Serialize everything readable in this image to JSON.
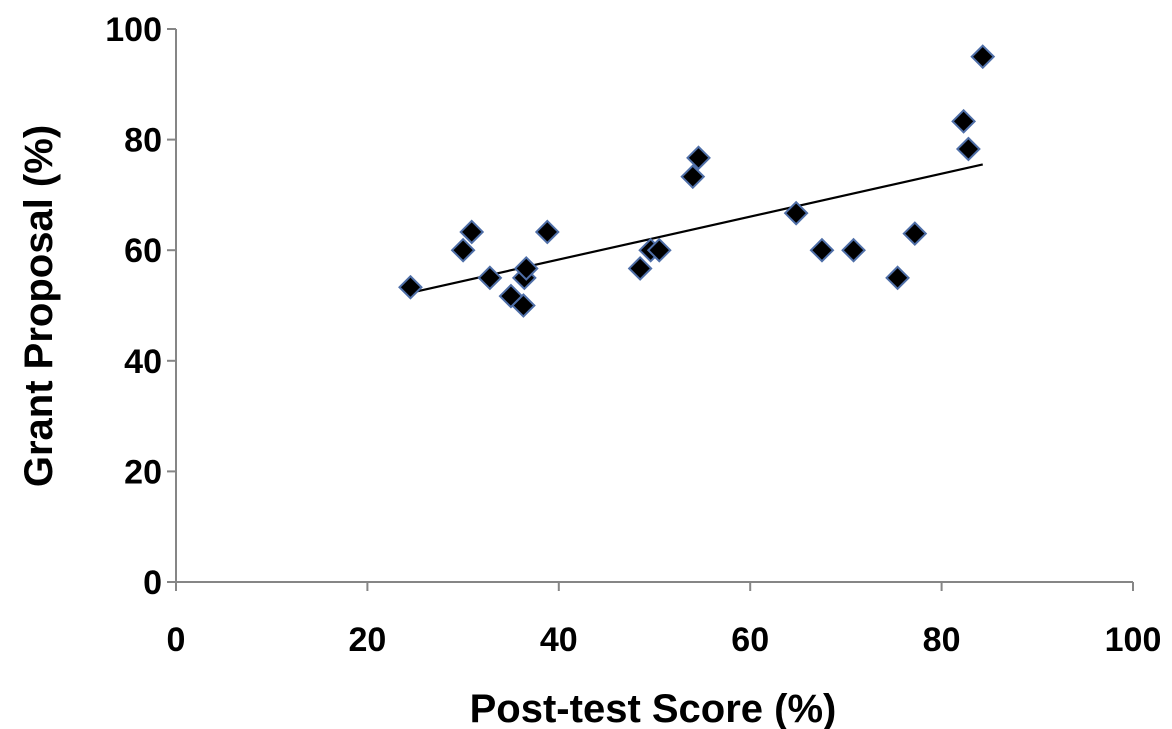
{
  "chart_data": {
    "type": "scatter",
    "title": "",
    "xlabel": "Post-test Score (%)",
    "ylabel": "Grant Proposal (%)",
    "xlim": [
      0,
      100
    ],
    "ylim": [
      0,
      100
    ],
    "x_ticks": [
      "0",
      "20",
      "40",
      "60",
      "80",
      "100"
    ],
    "y_ticks": [
      "0",
      "20",
      "40",
      "60",
      "80",
      "100"
    ],
    "grid": false,
    "legend": "none",
    "marker": "diamond",
    "marker_color": "#000000",
    "marker_edge_color": "#4f6fa8",
    "trendline": {
      "type": "linear",
      "x_range": [
        24.5,
        84.3
      ],
      "y_range": [
        52.3,
        75.5
      ],
      "color": "#000000"
    },
    "series": [
      {
        "points": [
          {
            "x": 24.5,
            "y": 53.3
          },
          {
            "x": 30.0,
            "y": 60.0
          },
          {
            "x": 30.9,
            "y": 63.3
          },
          {
            "x": 32.8,
            "y": 55.0
          },
          {
            "x": 35.0,
            "y": 51.7
          },
          {
            "x": 36.3,
            "y": 50.0
          },
          {
            "x": 36.4,
            "y": 55.0
          },
          {
            "x": 36.6,
            "y": 56.7
          },
          {
            "x": 38.8,
            "y": 63.3
          },
          {
            "x": 48.5,
            "y": 56.7
          },
          {
            "x": 49.6,
            "y": 60.0
          },
          {
            "x": 50.5,
            "y": 60.0
          },
          {
            "x": 54.0,
            "y": 73.3
          },
          {
            "x": 54.6,
            "y": 76.7
          },
          {
            "x": 64.8,
            "y": 66.7
          },
          {
            "x": 67.5,
            "y": 60.0
          },
          {
            "x": 70.8,
            "y": 60.0
          },
          {
            "x": 75.4,
            "y": 55.0
          },
          {
            "x": 77.2,
            "y": 63.0
          },
          {
            "x": 82.3,
            "y": 83.3
          },
          {
            "x": 82.8,
            "y": 78.3
          },
          {
            "x": 84.3,
            "y": 95.0
          }
        ]
      }
    ]
  }
}
